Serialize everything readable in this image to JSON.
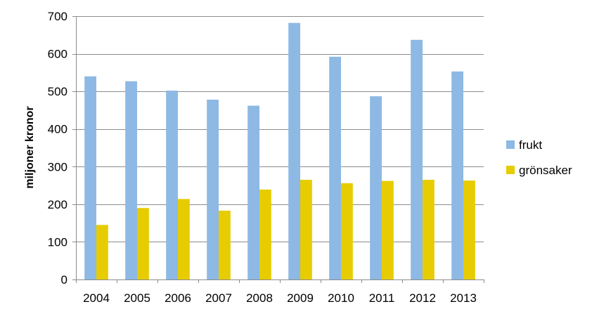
{
  "chart_data": {
    "type": "bar",
    "title": "",
    "xlabel": "",
    "ylabel": "miljoner kronor",
    "categories": [
      "2004",
      "2005",
      "2006",
      "2007",
      "2008",
      "2009",
      "2010",
      "2011",
      "2012",
      "2013"
    ],
    "series": [
      {
        "name": "frukt",
        "color": "#8DB9E4",
        "values": [
          540,
          527,
          502,
          478,
          462,
          682,
          592,
          487,
          637,
          553
        ]
      },
      {
        "name": "grönsaker",
        "color": "#E6CC00",
        "values": [
          145,
          190,
          214,
          183,
          239,
          265,
          256,
          262,
          265,
          263
        ]
      }
    ],
    "ylim": [
      0,
      700
    ],
    "yticks": [
      0,
      100,
      200,
      300,
      400,
      500,
      600,
      700
    ],
    "grid": true,
    "legend_position": "right"
  }
}
